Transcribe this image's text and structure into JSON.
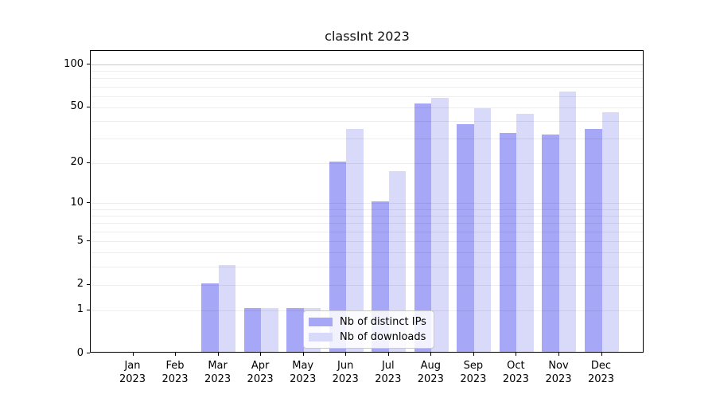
{
  "chart_data": {
    "type": "bar",
    "title": "classInt 2023",
    "categories": [
      "Jan 2023",
      "Feb 2023",
      "Mar 2023",
      "Apr 2023",
      "May 2023",
      "Jun 2023",
      "Jul 2023",
      "Aug 2023",
      "Sep 2023",
      "Oct 2023",
      "Nov 2023",
      "Dec 2023"
    ],
    "series": [
      {
        "key": "distinct-ips",
        "name": "Nb of distinct IPs",
        "color": "#a7a7f7",
        "values": [
          0,
          0,
          2,
          1,
          1,
          20,
          10,
          52,
          37,
          32,
          31,
          34
        ]
      },
      {
        "key": "downloads",
        "name": "Nb of downloads",
        "color": "#d9d9fa",
        "values": [
          0,
          0,
          3,
          1,
          1,
          34,
          17,
          57,
          48,
          44,
          63,
          45
        ]
      }
    ],
    "xlabel": "",
    "ylabel": "",
    "yscale": "log1p",
    "ylim": [
      0,
      125
    ],
    "y_ticks": [
      {
        "label": "100",
        "value": 100
      },
      {
        "label": "50",
        "value": 50
      },
      {
        "label": "20",
        "value": 20
      },
      {
        "label": "10",
        "value": 10
      },
      {
        "label": "5",
        "value": 5
      },
      {
        "label": "2",
        "value": 2
      },
      {
        "label": "1",
        "value": 1
      },
      {
        "label": "0",
        "value": 0
      }
    ],
    "grid": "on",
    "grid_values_minor": [
      1,
      2,
      3,
      4,
      5,
      6,
      7,
      8,
      9,
      10,
      20,
      30,
      40,
      50,
      60,
      70,
      80,
      90
    ],
    "grid_values_major": [
      100
    ],
    "legend_position": "lower-center-inside"
  },
  "colors": {
    "bar_dark": "#a7a7f7",
    "bar_light": "#d9d9fa",
    "grid_minor": "rgba(0,0,0,0.07)",
    "grid_major": "rgba(0,0,0,0.21)",
    "spine": "#000000",
    "legend_border": "#c9c9c9"
  }
}
